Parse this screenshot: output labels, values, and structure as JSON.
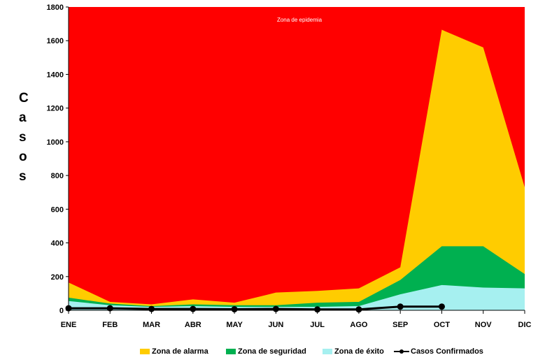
{
  "chart_data": {
    "type": "area",
    "categories": [
      "ENE",
      "FEB",
      "MAR",
      "ABR",
      "MAY",
      "JUN",
      "JUL",
      "AGO",
      "SEP",
      "OCT",
      "NOV",
      "DIC"
    ],
    "ylim": [
      0,
      1800
    ],
    "yticks": [
      0,
      200,
      400,
      600,
      800,
      1000,
      1200,
      1400,
      1600,
      1800
    ],
    "ylabel": "Casos",
    "xlabel": "",
    "title": "",
    "annotation": "Zona de epidemia",
    "background_color": "#ff0000",
    "series": [
      {
        "name": "Zona de alarma",
        "color": "#ffcc00",
        "values": [
          165,
          50,
          35,
          65,
          45,
          105,
          115,
          130,
          255,
          1665,
          1560,
          730
        ]
      },
      {
        "name": "Zona de seguridad",
        "color": "#00b050",
        "values": [
          75,
          40,
          25,
          35,
          30,
          30,
          45,
          50,
          180,
          380,
          380,
          215
        ]
      },
      {
        "name": "Zona de éxito",
        "color": "#a6f0f0",
        "values": [
          55,
          30,
          20,
          25,
          20,
          20,
          20,
          25,
          95,
          150,
          135,
          130
        ]
      },
      {
        "name": "Casos Confirmados",
        "color": "#000000",
        "type": "line",
        "values": [
          12,
          12,
          8,
          8,
          6,
          8,
          5,
          5,
          22,
          22,
          null,
          null
        ]
      }
    ],
    "legend_position": "bottom",
    "grid": false
  }
}
